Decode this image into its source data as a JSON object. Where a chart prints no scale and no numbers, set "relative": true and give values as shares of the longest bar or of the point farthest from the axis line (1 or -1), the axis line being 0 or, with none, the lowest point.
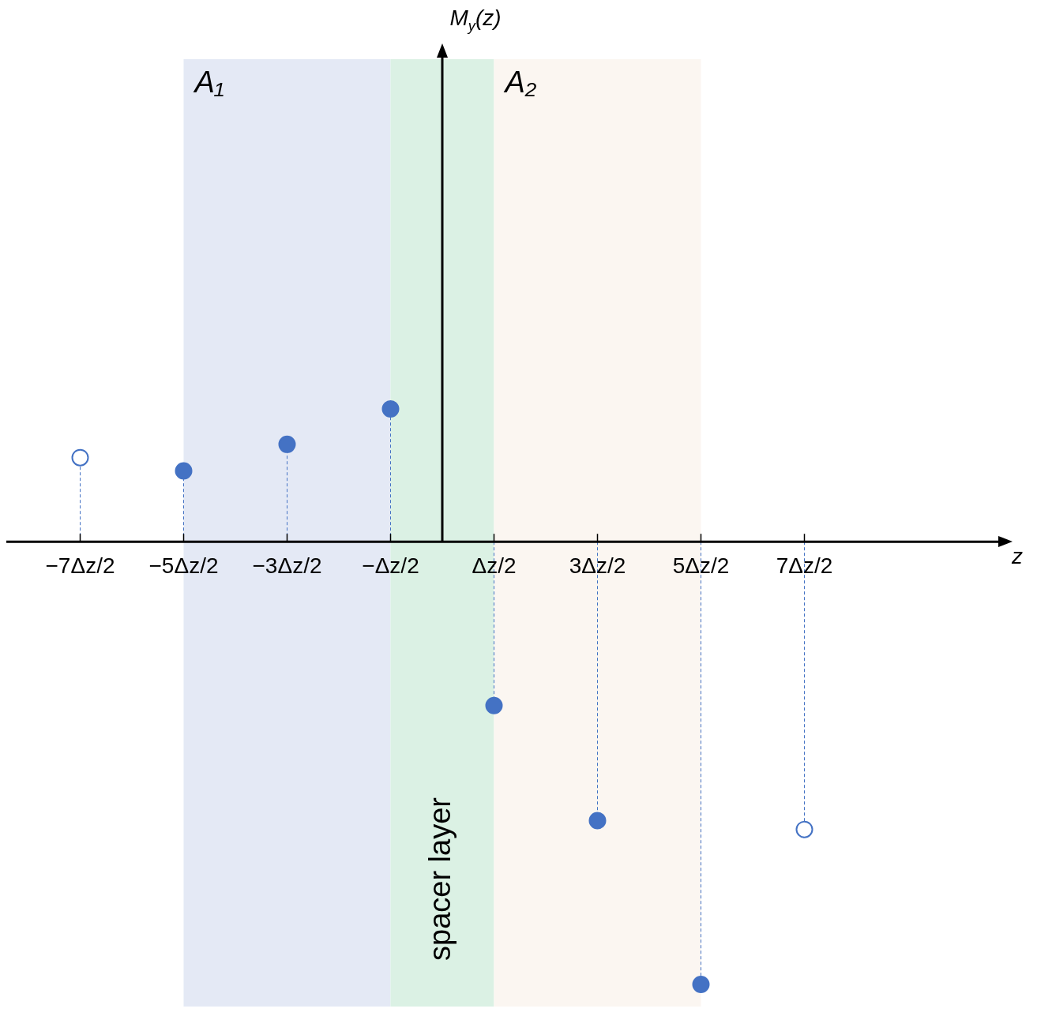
{
  "chart_data": {
    "type": "lollipop",
    "relative": true,
    "annotations": [
      "z",
      "M$_{y}$(z)"
    ],
    "marker": "circle",
    "categories": [
      "−7Δz/2",
      "−5Δz/2",
      "−3Δz/2",
      "−Δz/2",
      "Δz/2",
      "3Δz/2",
      "5Δz/2",
      "7Δz/2"
    ],
    "series": [
      {
        "color": "#4472c4",
        "values": [
          null,
          0.16,
          0.22,
          0.3,
          -0.37,
          -0.63,
          -1,
          null
        ]
      },
      {
        "color": "#4472c4",
        "line_style": "dotted",
        "values": [
          0.19,
          null,
          null,
          null,
          null,
          null,
          null,
          -0.65
        ]
      }
    ],
    "bands": [
      {
        "axis": "x",
        "from": "−5Δz/2",
        "to": "−Δz/2",
        "label": "A₁",
        "color": "#e4e9f5"
      },
      {
        "axis": "x",
        "from": "−Δz/2",
        "to": "Δz/2",
        "label": "spacer layer",
        "color": "#dbf1e4"
      },
      {
        "axis": "x",
        "from": "Δz/2",
        "to": "5Δz/2",
        "label": "A₂",
        "color": "#fbf6f1"
      }
    ]
  }
}
